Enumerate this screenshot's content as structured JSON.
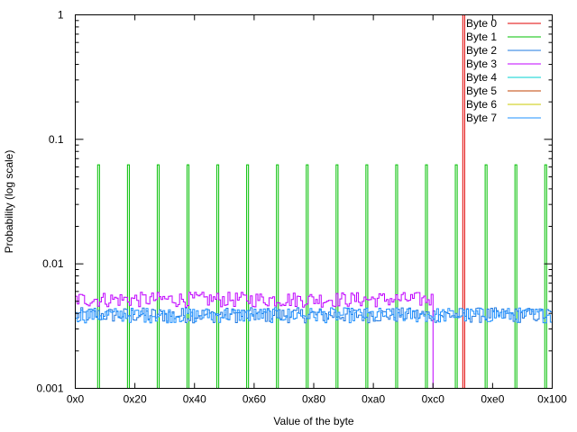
{
  "chart_data": {
    "type": "line",
    "title": "",
    "xlabel": "Value of the byte",
    "ylabel": "Probability (log scale)",
    "xlim": [
      0,
      256
    ],
    "ylim": [
      0.001,
      1
    ],
    "yscale": "log",
    "xticks": [
      {
        "v": 0,
        "label": "0x0"
      },
      {
        "v": 32,
        "label": "0x20"
      },
      {
        "v": 64,
        "label": "0x40"
      },
      {
        "v": 96,
        "label": "0x60"
      },
      {
        "v": 128,
        "label": "0x80"
      },
      {
        "v": 160,
        "label": "0xa0"
      },
      {
        "v": 192,
        "label": "0xc0"
      },
      {
        "v": 224,
        "label": "0xe0"
      },
      {
        "v": 256,
        "label": "0x100"
      }
    ],
    "yticks": [
      {
        "v": 0.001,
        "label": "0.001"
      },
      {
        "v": 0.01,
        "label": "0.01"
      },
      {
        "v": 0.1,
        "label": "0.1"
      },
      {
        "v": 1,
        "label": "1"
      }
    ],
    "legend_position": "top-right",
    "grid": false,
    "series": [
      {
        "name": "Byte 0",
        "color": "#e00000",
        "kind": "spikes",
        "positions": [
          208
        ],
        "value": 1.0
      },
      {
        "name": "Byte 1",
        "color": "#00c000",
        "kind": "spikes",
        "positions": [
          12,
          28,
          44,
          60,
          76,
          92,
          108,
          124,
          140,
          156,
          172,
          188,
          204,
          220,
          236,
          252
        ],
        "value": 0.0625
      },
      {
        "name": "Byte 2",
        "color": "#1e78e0",
        "kind": "uniform",
        "range": [
          0,
          256
        ],
        "value": 0.0039
      },
      {
        "name": "Byte 3",
        "color": "#c000ff",
        "kind": "uniform",
        "range": [
          0,
          192
        ],
        "value": 0.0052
      },
      {
        "name": "Byte 4",
        "color": "#00d0d0",
        "kind": "hidden"
      },
      {
        "name": "Byte 5",
        "color": "#c04000",
        "kind": "hidden"
      },
      {
        "name": "Byte 6",
        "color": "#c8c800",
        "kind": "hidden"
      },
      {
        "name": "Byte 7",
        "color": "#1e90ff",
        "kind": "uniform",
        "range": [
          0,
          256
        ],
        "value": 0.0039
      }
    ]
  }
}
